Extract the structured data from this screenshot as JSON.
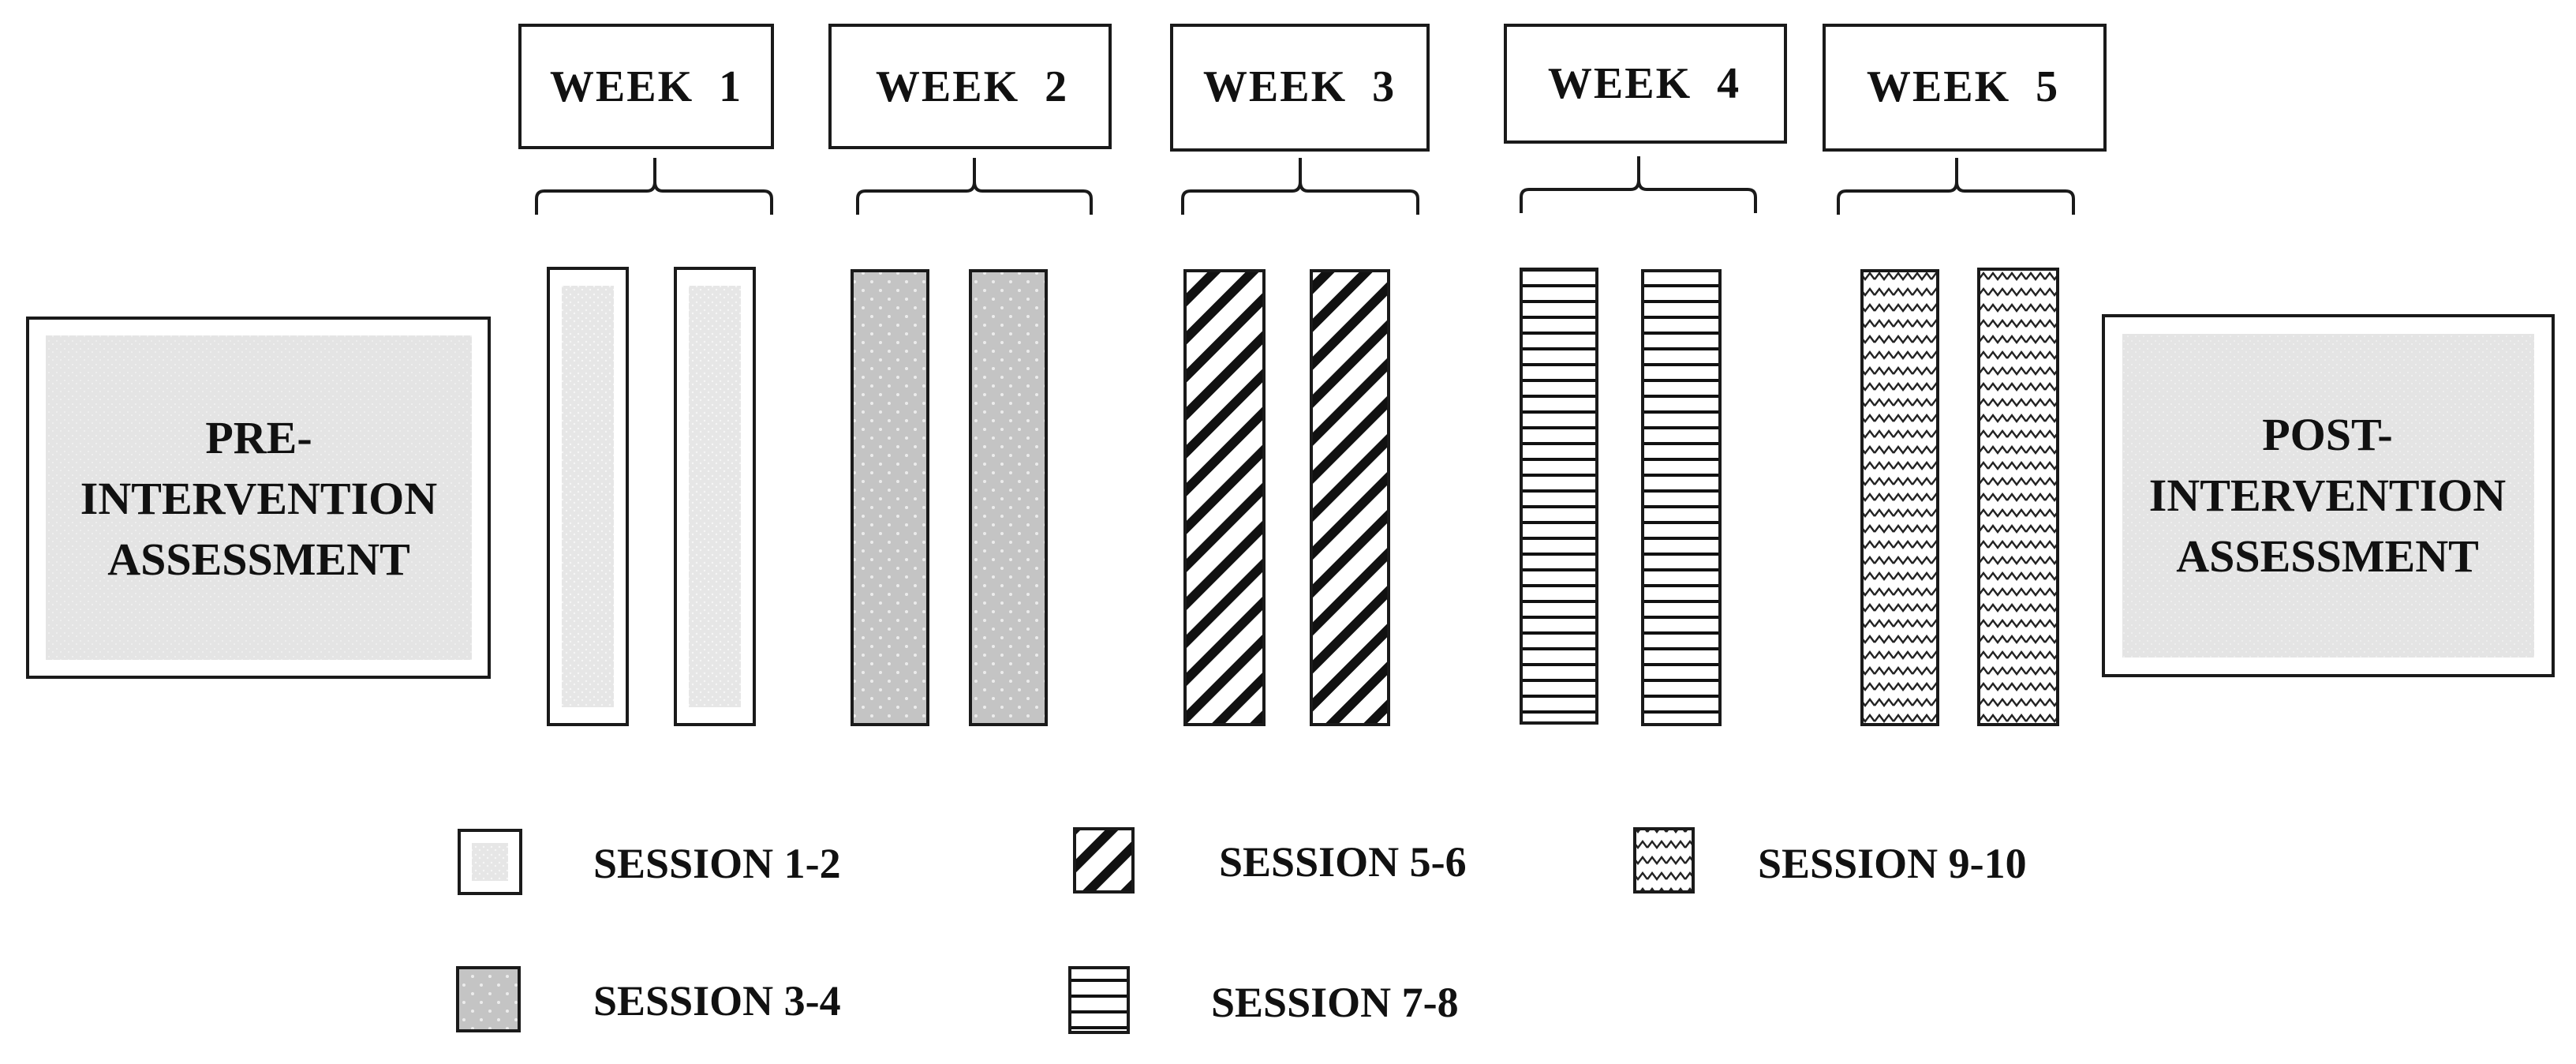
{
  "assessments": {
    "pre": [
      "PRE-",
      "INTERVENTION",
      "ASSESSMENT"
    ],
    "post": [
      "POST-",
      "INTERVENTION",
      "ASSESSMENT"
    ]
  },
  "weeks": [
    {
      "label": "WEEK  1",
      "pattern": "light"
    },
    {
      "label": "WEEK  2",
      "pattern": "dotted"
    },
    {
      "label": "WEEK  3",
      "pattern": "diagonal"
    },
    {
      "label": "WEEK  4",
      "pattern": "horizontal"
    },
    {
      "label": "WEEK  5",
      "pattern": "zigzag"
    }
  ],
  "legend": [
    {
      "label": "SESSION 1-2",
      "pattern": "light"
    },
    {
      "label": "SESSION 3-4",
      "pattern": "dotted"
    },
    {
      "label": "SESSION 5-6",
      "pattern": "diagonal"
    },
    {
      "label": "SESSION 7-8",
      "pattern": "horizontal"
    },
    {
      "label": "SESSION 9-10",
      "pattern": "zigzag"
    }
  ],
  "colors": {
    "stroke": "#1a1a1a",
    "light_fill": "#e6e6e6",
    "dotted_fill": "#c4c4c4",
    "assessment_fill": "#e4e4e4"
  }
}
